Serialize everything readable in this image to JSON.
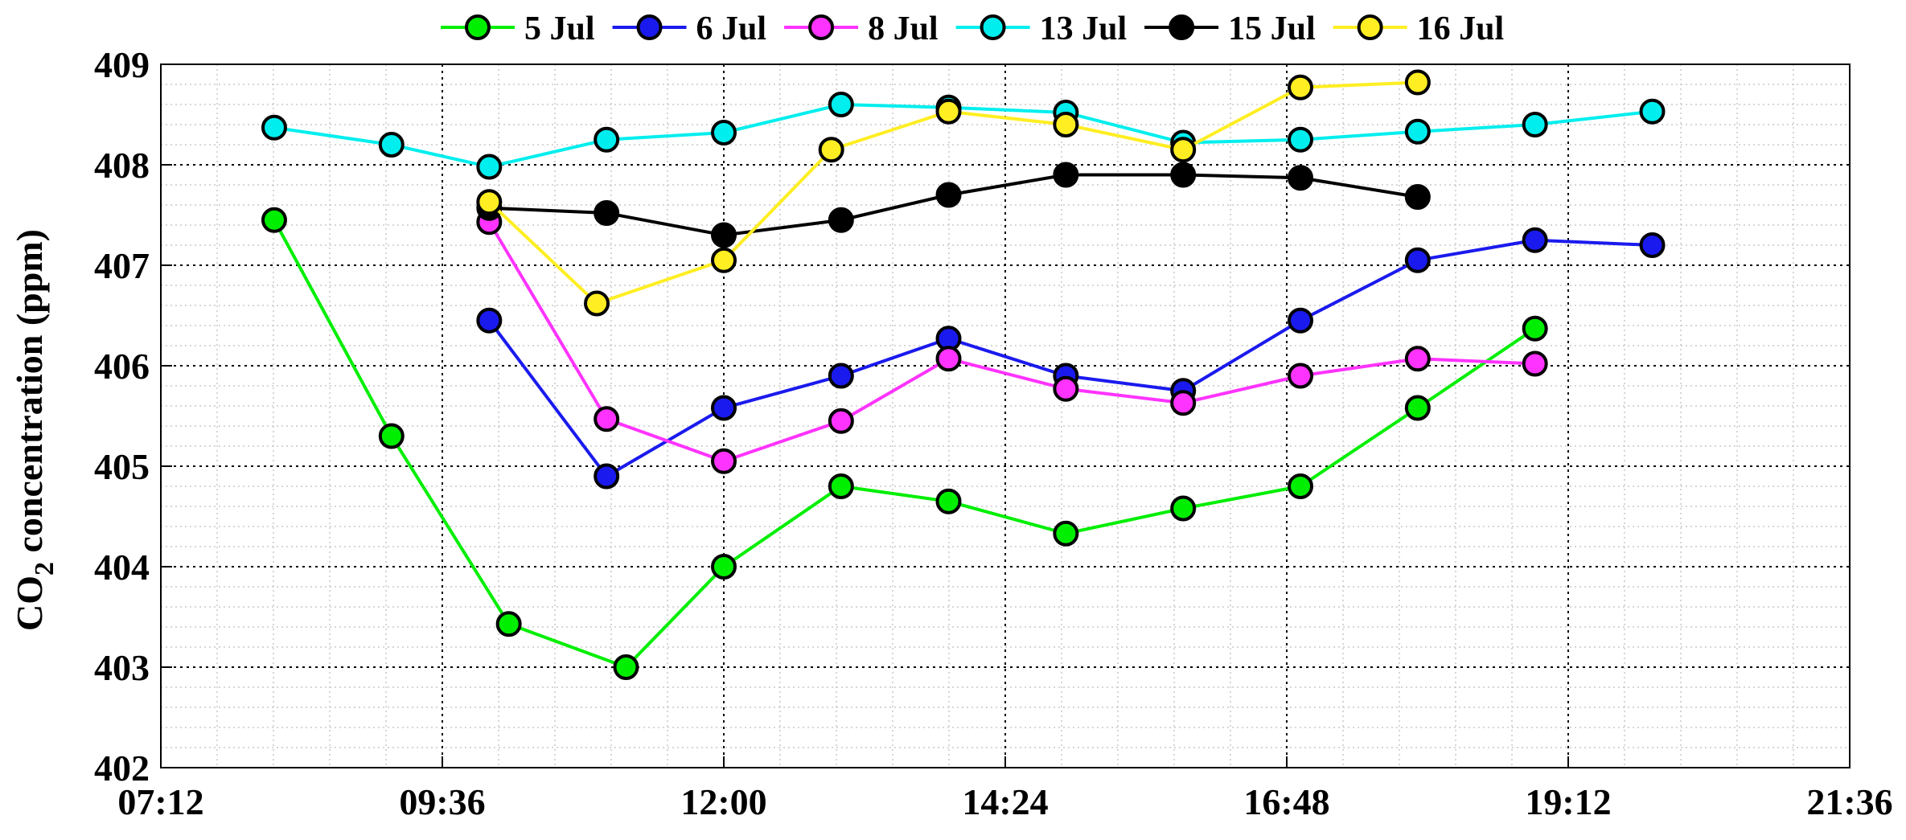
{
  "chart_data": {
    "type": "line",
    "title": "",
    "xlabel": "",
    "ylabel_main": "CO",
    "ylabel_sub": "2",
    "ylabel_rest": " concentration (ppm)",
    "x_ticks": [
      "07:12",
      "09:36",
      "12:00",
      "14:24",
      "16:48",
      "19:12",
      "21:36"
    ],
    "y_ticks": [
      "402",
      "403",
      "404",
      "405",
      "406",
      "407",
      "408",
      "409"
    ],
    "xlim": [
      "07:12",
      "21:36"
    ],
    "ylim": [
      402,
      409
    ],
    "grid": "major dotted and minor dotted",
    "legend_placement": "top, horizontal, above plot",
    "series": [
      {
        "name": "5 Jul",
        "color": "#00ee00",
        "points": [
          [
            "08:10",
            407.45
          ],
          [
            "09:10",
            405.3
          ],
          [
            "10:10",
            403.43
          ],
          [
            "11:10",
            403.0
          ],
          [
            "12:00",
            404.0
          ],
          [
            "13:00",
            404.8
          ],
          [
            "13:55",
            404.65
          ],
          [
            "14:55",
            404.33
          ],
          [
            "15:55",
            404.58
          ],
          [
            "16:55",
            404.8
          ],
          [
            "17:55",
            405.58
          ],
          [
            "18:55",
            406.37
          ]
        ]
      },
      {
        "name": "6 Jul",
        "color": "#1a1aee",
        "points": [
          [
            "10:00",
            406.45
          ],
          [
            "11:00",
            404.9
          ],
          [
            "12:00",
            405.58
          ],
          [
            "13:00",
            405.9
          ],
          [
            "13:55",
            406.27
          ],
          [
            "14:55",
            405.9
          ],
          [
            "15:55",
            405.75
          ],
          [
            "16:55",
            406.45
          ],
          [
            "17:55",
            407.05
          ],
          [
            "18:55",
            407.25
          ],
          [
            "19:55",
            407.2
          ]
        ]
      },
      {
        "name": "8 Jul",
        "color": "#ff33ff",
        "points": [
          [
            "10:00",
            407.43
          ],
          [
            "11:00",
            405.47
          ],
          [
            "12:00",
            405.05
          ],
          [
            "13:00",
            405.45
          ],
          [
            "13:55",
            406.07
          ],
          [
            "14:55",
            405.77
          ],
          [
            "15:55",
            405.63
          ],
          [
            "16:55",
            405.9
          ],
          [
            "17:55",
            406.07
          ],
          [
            "18:55",
            406.02
          ]
        ]
      },
      {
        "name": "13 Jul",
        "color": "#00eeee",
        "points": [
          [
            "08:10",
            408.37
          ],
          [
            "09:10",
            408.2
          ],
          [
            "10:00",
            407.98
          ],
          [
            "11:00",
            408.25
          ],
          [
            "12:00",
            408.32
          ],
          [
            "13:00",
            408.6
          ],
          [
            "13:55",
            408.57
          ],
          [
            "14:55",
            408.52
          ],
          [
            "15:55",
            408.22
          ],
          [
            "16:55",
            408.25
          ],
          [
            "17:55",
            408.33
          ],
          [
            "18:55",
            408.4
          ],
          [
            "19:55",
            408.53
          ]
        ]
      },
      {
        "name": "15 Jul",
        "color": "#000000",
        "points": [
          [
            "10:00",
            407.57
          ],
          [
            "11:00",
            407.52
          ],
          [
            "12:00",
            407.3
          ],
          [
            "13:00",
            407.45
          ],
          [
            "13:55",
            407.7
          ],
          [
            "14:55",
            407.9
          ],
          [
            "15:55",
            407.9
          ],
          [
            "16:55",
            407.87
          ],
          [
            "17:55",
            407.68
          ]
        ]
      },
      {
        "name": "16 Jul",
        "color": "#ffee22",
        "points": [
          [
            "10:00",
            407.63
          ],
          [
            "10:55",
            406.62
          ],
          [
            "12:00",
            407.05
          ],
          [
            "12:55",
            408.15
          ],
          [
            "13:55",
            408.53
          ],
          [
            "14:55",
            408.4
          ],
          [
            "15:55",
            408.15
          ],
          [
            "16:55",
            408.77
          ],
          [
            "17:55",
            408.82
          ]
        ]
      }
    ]
  }
}
